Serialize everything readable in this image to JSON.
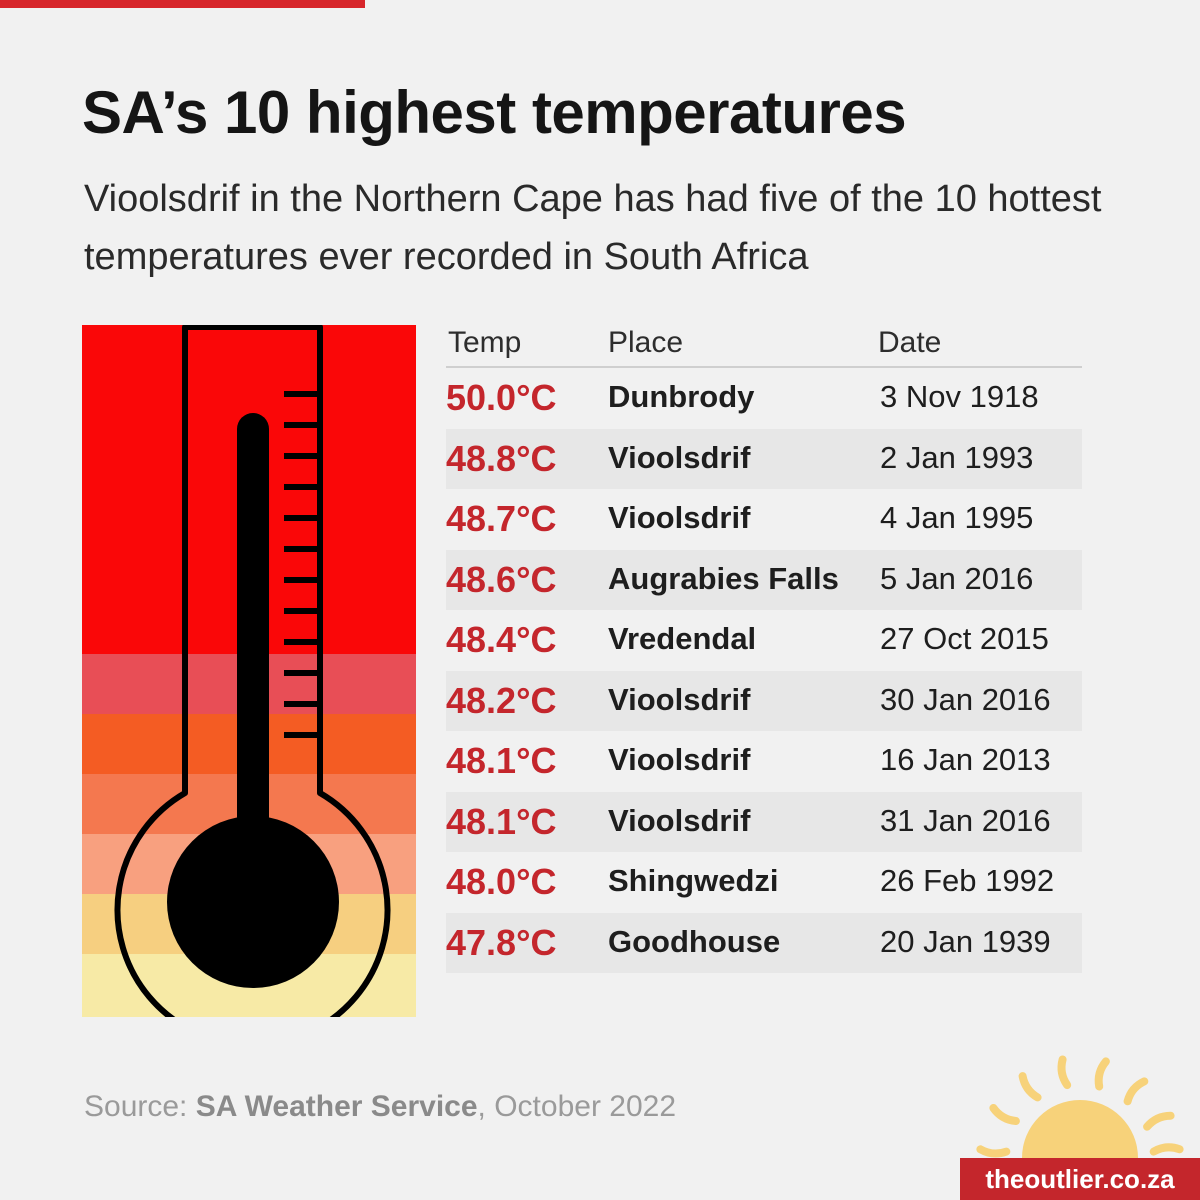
{
  "title": "SA’s 10 highest temperatures",
  "subtitle": "Vioolsdrif in the Northern Cape has had five of the 10 hottest temperatures ever recorded in South Africa",
  "table": {
    "headers": {
      "temp": "Temp",
      "place": "Place",
      "date": "Date"
    },
    "rows": [
      {
        "temp": "50.0°C",
        "place": "Dunbrody",
        "date": "3 Nov 1918"
      },
      {
        "temp": "48.8°C",
        "place": "Vioolsdrif",
        "date": "2 Jan 1993"
      },
      {
        "temp": "48.7°C",
        "place": "Vioolsdrif",
        "date": "4 Jan 1995"
      },
      {
        "temp": "48.6°C",
        "place": "Augrabies Falls",
        "date": "5 Jan 2016"
      },
      {
        "temp": "48.4°C",
        "place": "Vredendal",
        "date": "27 Oct 2015"
      },
      {
        "temp": "48.2°C",
        "place": "Vioolsdrif",
        "date": "30 Jan 2016"
      },
      {
        "temp": "48.1°C",
        "place": "Vioolsdrif",
        "date": "16 Jan 2013"
      },
      {
        "temp": "48.1°C",
        "place": "Vioolsdrif",
        "date": "31 Jan 2016"
      },
      {
        "temp": "48.0°C",
        "place": "Shingwedzi",
        "date": "26 Feb 1992"
      },
      {
        "temp": "47.8°C",
        "place": "Goodhouse",
        "date": "20 Jan 1939"
      }
    ]
  },
  "source": {
    "prefix": "Source: ",
    "name": "SA Weather Service",
    "suffix": ", October 2022"
  },
  "brand": "theoutlier.co.za",
  "colors": {
    "accent": "#c4262c",
    "top_bar": "#d7262b",
    "thermo_bands": [
      "#fa0708",
      "#e84e56",
      "#f45c23",
      "#f4784f",
      "#f8a07f",
      "#f6cf80",
      "#f7eaa6"
    ],
    "sun": "#f7d27a"
  },
  "icons": {
    "thermometer": "thermometer-icon",
    "sun": "sun-icon"
  },
  "chart_data": {
    "type": "table",
    "columns": [
      "Temp",
      "Place",
      "Date"
    ],
    "unit": "°C",
    "values": [
      50.0,
      48.8,
      48.7,
      48.6,
      48.4,
      48.2,
      48.1,
      48.1,
      48.0,
      47.8
    ],
    "places": [
      "Dunbrody",
      "Vioolsdrif",
      "Vioolsdrif",
      "Augrabies Falls",
      "Vredendal",
      "Vioolsdrif",
      "Vioolsdrif",
      "Vioolsdrif",
      "Shingwedzi",
      "Goodhouse"
    ],
    "dates": [
      "3 Nov 1918",
      "2 Jan 1993",
      "4 Jan 1995",
      "5 Jan 2016",
      "27 Oct 2015",
      "30 Jan 2016",
      "16 Jan 2013",
      "31 Jan 2016",
      "26 Feb 1992",
      "20 Jan 1939"
    ]
  }
}
